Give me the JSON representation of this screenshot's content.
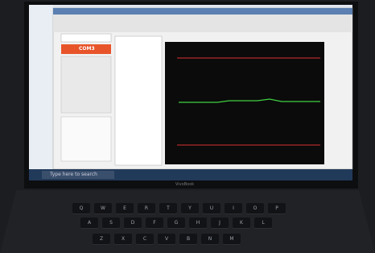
{
  "window": {
    "port": "COM3"
  },
  "taskbar": {
    "search": "Type here to search"
  },
  "laptop": {
    "brand": "VivoBook"
  },
  "keyboard": {
    "rows": [
      [
        "Q",
        "W",
        "E",
        "R",
        "T",
        "Y",
        "U",
        "I",
        "O",
        "P"
      ],
      [
        "A",
        "S",
        "D",
        "F",
        "G",
        "H",
        "J",
        "K",
        "L"
      ],
      [
        "Z",
        "X",
        "C",
        "V",
        "B",
        "N",
        "M"
      ]
    ]
  }
}
